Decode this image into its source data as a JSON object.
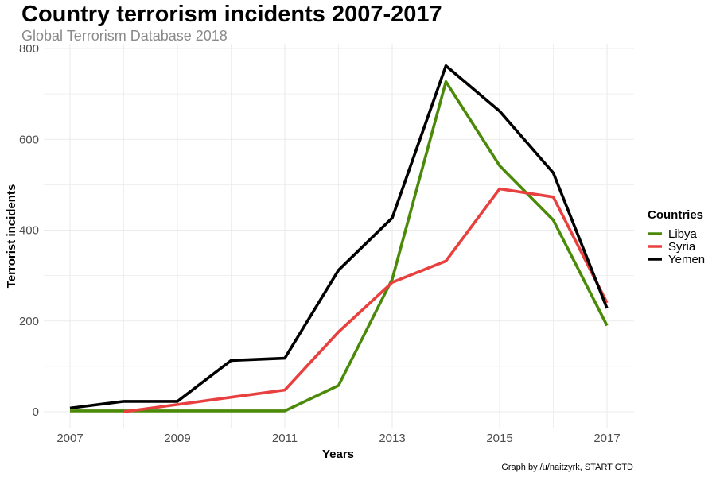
{
  "chart_data": {
    "type": "line",
    "title": "Country terrorism incidents 2007-2017",
    "subtitle": "Global Terrorism Database 2018",
    "xlabel": "Years",
    "ylabel": "Terrorist incidents",
    "caption": "Graph by /u/naitzyrk, START GTD",
    "xlim": [
      2006.8,
      2017.5
    ],
    "ylim": [
      -35,
      800
    ],
    "x_ticks": [
      2007,
      2009,
      2011,
      2013,
      2015,
      2017
    ],
    "x_tick_labels": [
      "2007",
      "2009",
      "2011",
      "2013",
      "2015",
      "2017"
    ],
    "y_ticks": [
      0,
      200,
      400,
      600,
      800
    ],
    "y_tick_labels": [
      "0",
      "200",
      "400",
      "600",
      "800"
    ],
    "grid": true,
    "legend": {
      "title": "Countries",
      "position": "right"
    },
    "series": [
      {
        "name": "Libya",
        "color": "#4b8a08",
        "x": [
          2007,
          2008,
          2009,
          2010,
          2011,
          2012,
          2013,
          2014,
          2015,
          2016,
          2017
        ],
        "values": [
          2,
          2,
          2,
          2,
          2,
          58,
          292,
          727,
          542,
          422,
          190
        ]
      },
      {
        "name": "Syria",
        "color": "#e8403f",
        "x": [
          2008,
          2009,
          2010,
          2011,
          2012,
          2013,
          2014,
          2015,
          2016,
          2017
        ],
        "values": [
          0,
          16,
          32,
          48,
          176,
          285,
          332,
          491,
          473,
          240
        ]
      },
      {
        "name": "Yemen",
        "color": "#000000",
        "x": [
          2007,
          2008,
          2009,
          2010,
          2011,
          2012,
          2013,
          2014,
          2015,
          2016,
          2017
        ],
        "values": [
          8,
          23,
          23,
          113,
          118,
          312,
          427,
          762,
          662,
          526,
          228
        ]
      }
    ]
  }
}
